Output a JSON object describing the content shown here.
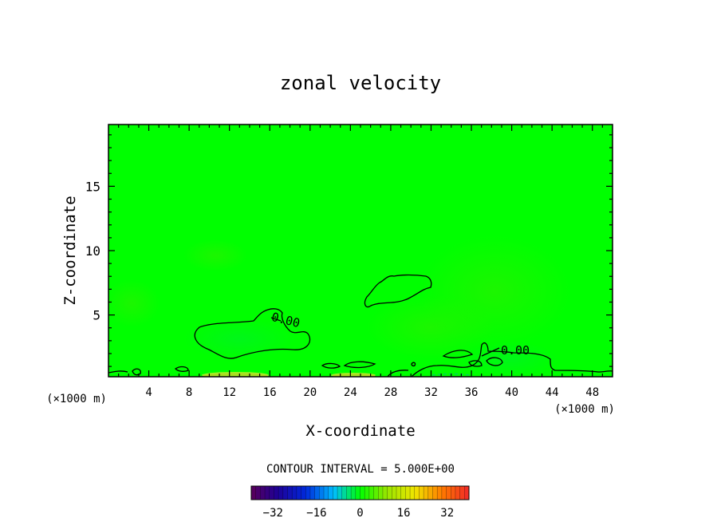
{
  "chart_data": {
    "type": "heatmap",
    "title": "zonal velocity",
    "xlabel": "X-coordinate",
    "ylabel": "Z-coordinate",
    "x_unit": "(×1000 m)",
    "x_range": [
      0,
      50
    ],
    "y_range": [
      0.2,
      19.8
    ],
    "x_ticks": [
      "4",
      "8",
      "12",
      "16",
      "20",
      "24",
      "28",
      "32",
      "36",
      "40",
      "44",
      "48"
    ],
    "y_ticks": [
      "5",
      "10",
      "15"
    ],
    "contour_labels": [
      "0.00",
      "0.00"
    ],
    "contour_interval_text": "CONTOUR INTERVAL = 5.000E+00",
    "colorbar": {
      "min": -40,
      "max": 40,
      "ticks": [
        "-32",
        "-16",
        "0",
        "16",
        "32"
      ]
    },
    "field_color": "#00ff00"
  }
}
